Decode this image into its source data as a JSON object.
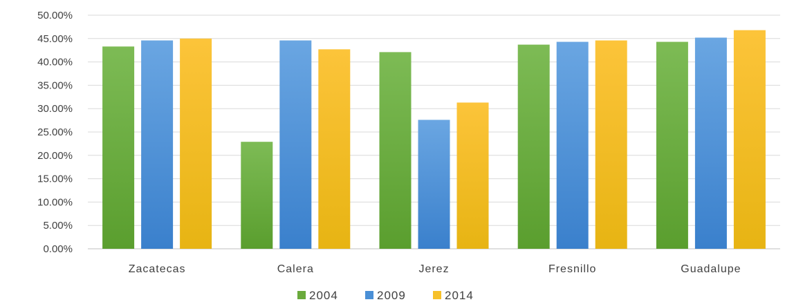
{
  "chart_data": {
    "type": "bar",
    "categories": [
      "Zacatecas",
      "Calera",
      "Jerez",
      "Fresnillo",
      "Guadalupe"
    ],
    "series": [
      {
        "name": "2004",
        "color": "#6aaa3c",
        "values": [
          43.3,
          22.9,
          42.1,
          43.7,
          44.3
        ]
      },
      {
        "name": "2009",
        "color": "#4a8fd6",
        "values": [
          44.6,
          44.6,
          27.6,
          44.3,
          45.2
        ]
      },
      {
        "name": "2014",
        "color": "#f7c12a",
        "values": [
          45.0,
          42.7,
          31.3,
          44.6,
          46.8
        ]
      }
    ],
    "ylim": [
      0,
      50
    ],
    "yticks": [
      "0.00%",
      "5.00%",
      "10.00%",
      "15.00%",
      "20.00%",
      "25.00%",
      "30.00%",
      "35.00%",
      "40.00%",
      "45.00%",
      "50.00%"
    ],
    "ytick_step": 5,
    "grid": true,
    "legend_position": "bottom-center",
    "title": "",
    "xlabel": "",
    "ylabel": ""
  }
}
